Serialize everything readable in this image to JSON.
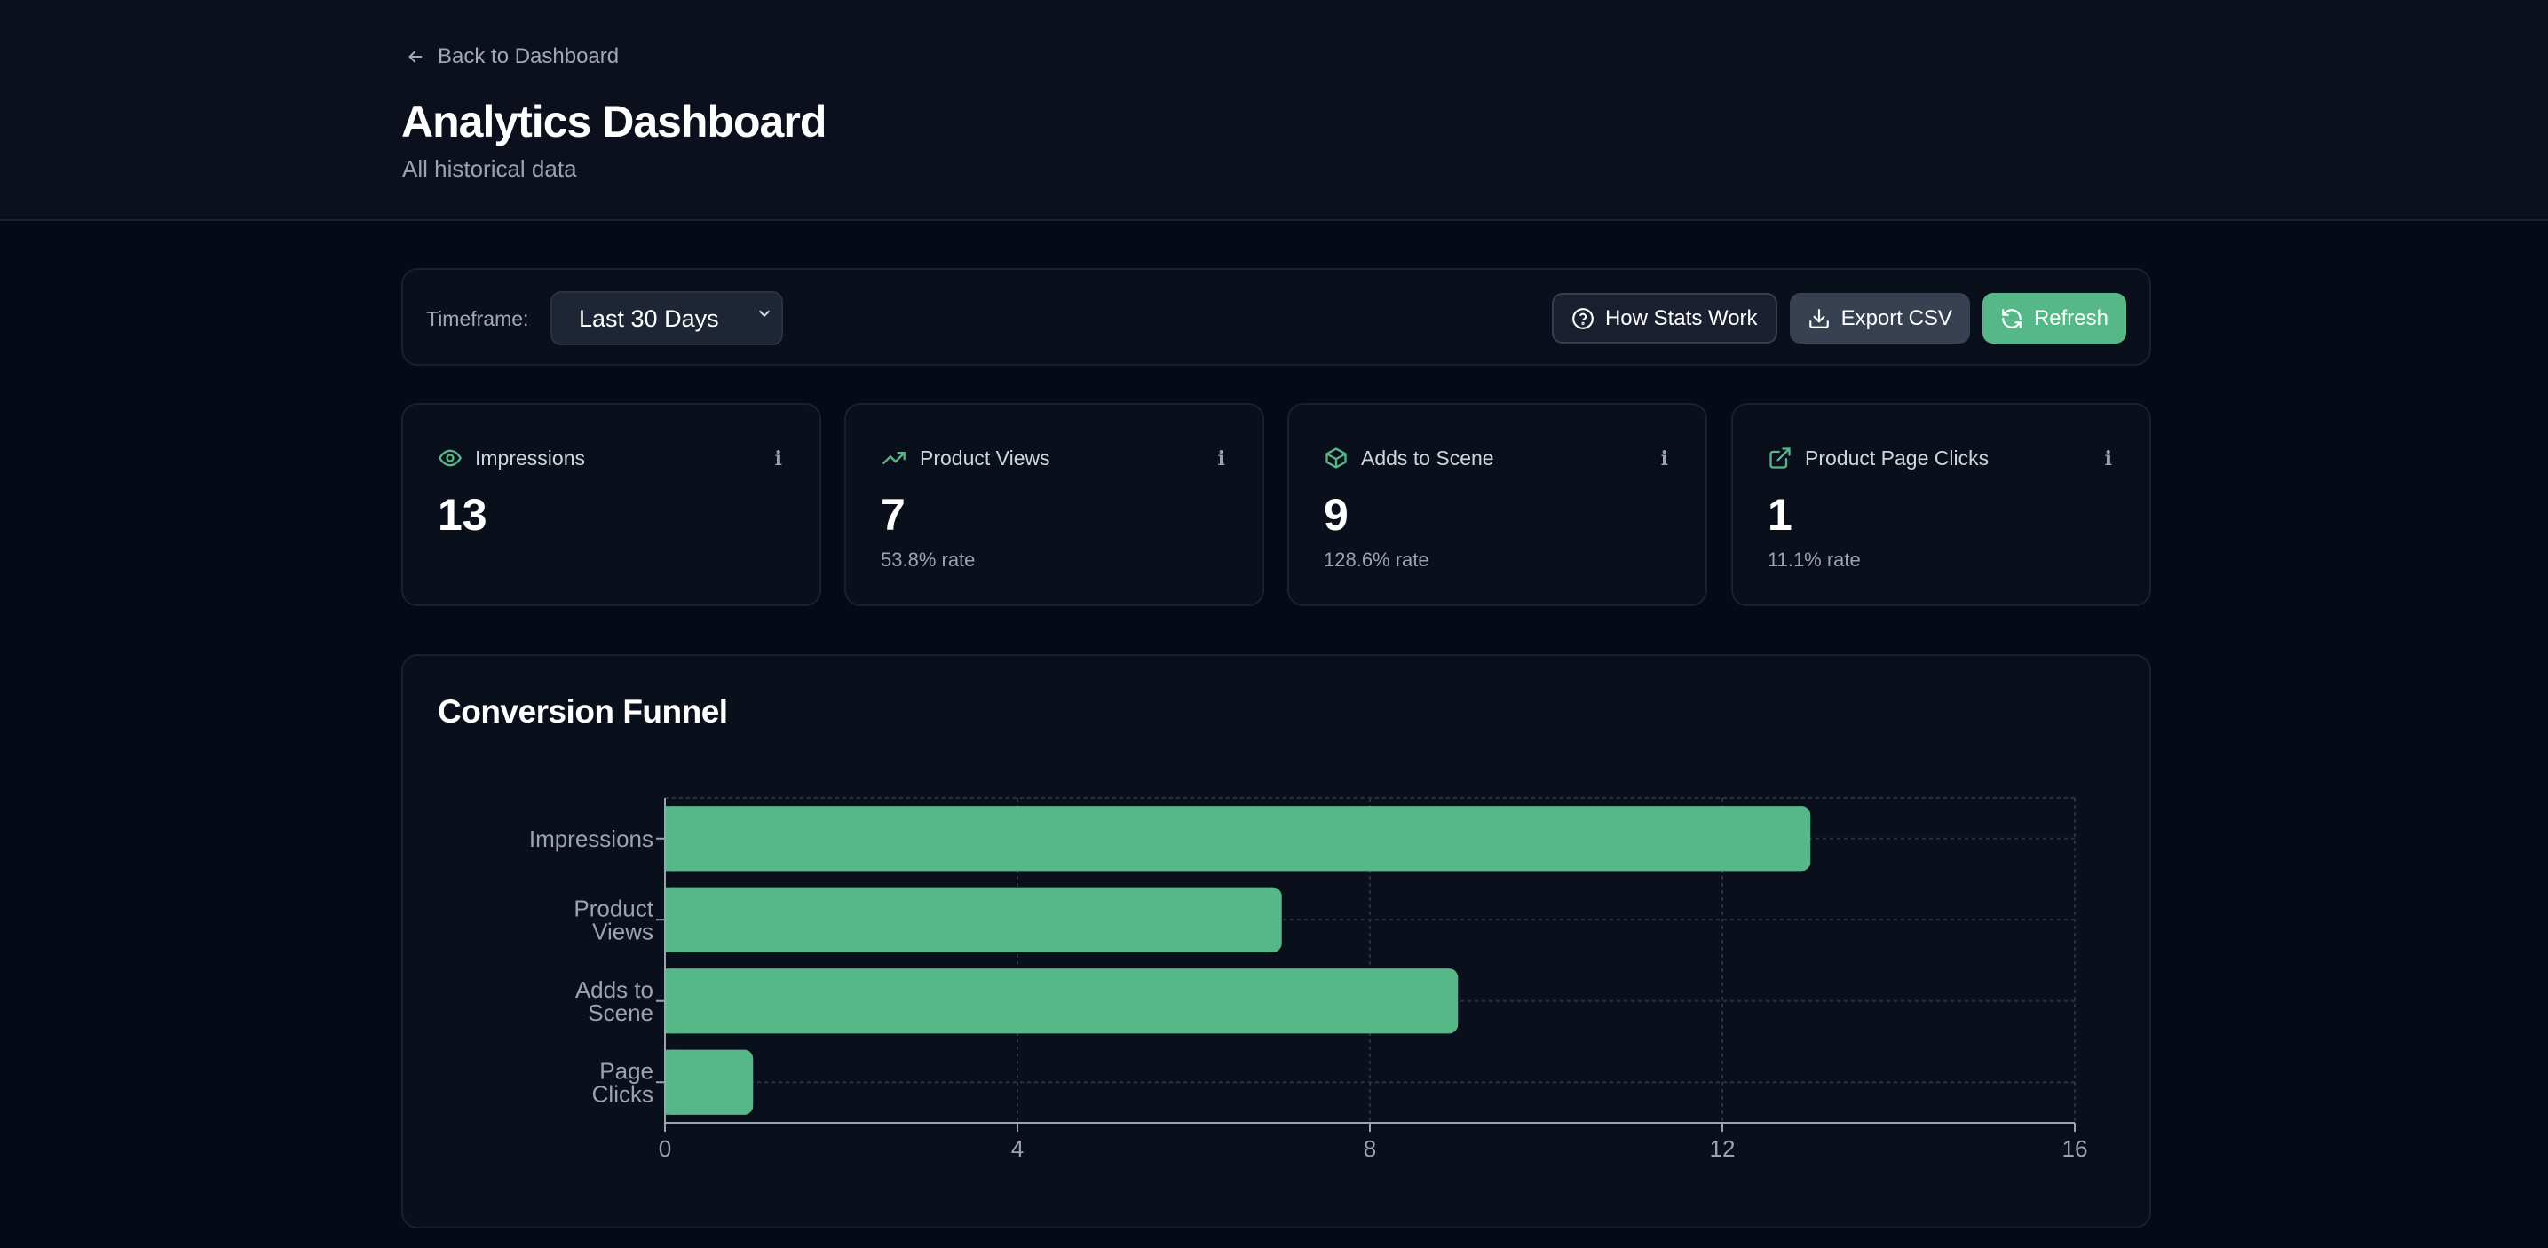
{
  "header": {
    "back_label": "Back to Dashboard",
    "title": "Analytics Dashboard",
    "subtitle": "All historical data"
  },
  "toolbar": {
    "timeframe_label": "Timeframe:",
    "timeframe_value": "Last 30 Days",
    "how_stats_label": "How Stats Work",
    "export_label": "Export CSV",
    "refresh_label": "Refresh"
  },
  "colors": {
    "accent": "#56b887",
    "background": "#060a16",
    "card": "#0a0f1c"
  },
  "stats": [
    {
      "icon": "eye-icon",
      "label": "Impressions",
      "value": "13",
      "rate": ""
    },
    {
      "icon": "trending-up-icon",
      "label": "Product Views",
      "value": "7",
      "rate": "53.8% rate"
    },
    {
      "icon": "box-icon",
      "label": "Adds to Scene",
      "value": "9",
      "rate": "128.6% rate"
    },
    {
      "icon": "external-link-icon",
      "label": "Product Page Clicks",
      "value": "1",
      "rate": "11.1% rate"
    }
  ],
  "chart_title": "Conversion Funnel",
  "chart_data": {
    "type": "bar",
    "orientation": "horizontal",
    "categories": [
      [
        "Impressions"
      ],
      [
        "Product",
        "Views"
      ],
      [
        "Adds to",
        "Scene"
      ],
      [
        "Page",
        "Clicks"
      ]
    ],
    "values": [
      13,
      7,
      9,
      1
    ],
    "xlim": [
      0,
      16
    ],
    "xticks": [
      "0",
      "4",
      "8",
      "12",
      "16"
    ],
    "grid": true,
    "color": "#56b887"
  }
}
